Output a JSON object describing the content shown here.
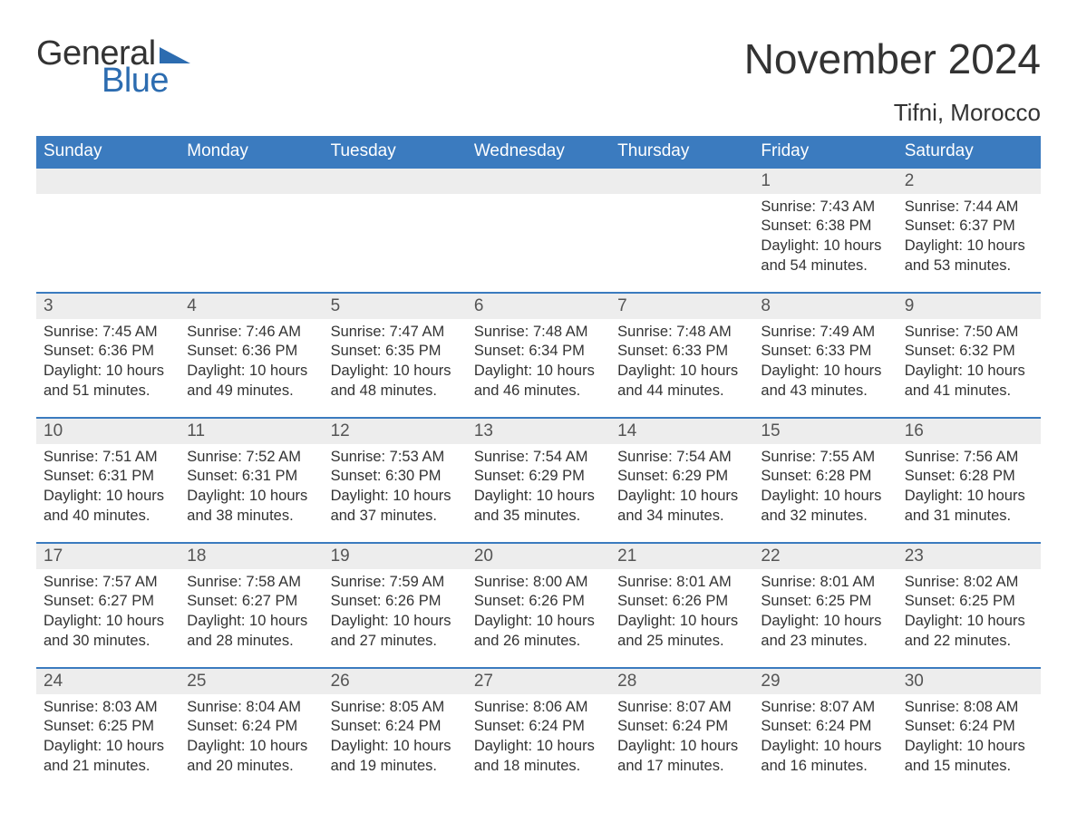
{
  "branding": {
    "logo_text_1": "General",
    "logo_text_2": "Blue",
    "logo_color_dark": "#333333",
    "logo_color_blue": "#2c6cb0",
    "triangle_color": "#2c6cb0"
  },
  "header": {
    "month_title": "November 2024",
    "location": "Tifni, Morocco"
  },
  "styling": {
    "header_bg": "#3b7bbf",
    "header_text_color": "#ffffff",
    "daynum_bg": "#ededed",
    "daynum_text_color": "#555555",
    "body_text_color": "#333333",
    "week_border_color": "#3b7bbf",
    "page_bg": "#ffffff",
    "header_fontsize": 19,
    "daynum_fontsize": 19,
    "detail_fontsize": 16.5,
    "month_title_fontsize": 46,
    "location_fontsize": 26,
    "columns": 7
  },
  "day_names": [
    "Sunday",
    "Monday",
    "Tuesday",
    "Wednesday",
    "Thursday",
    "Friday",
    "Saturday"
  ],
  "labels": {
    "sunrise": "Sunrise",
    "sunset": "Sunset",
    "daylight": "Daylight"
  },
  "weeks": [
    {
      "days": [
        null,
        null,
        null,
        null,
        null,
        {
          "num": "1",
          "sunrise": "7:43 AM",
          "sunset": "6:38 PM",
          "daylight": "10 hours and 54 minutes."
        },
        {
          "num": "2",
          "sunrise": "7:44 AM",
          "sunset": "6:37 PM",
          "daylight": "10 hours and 53 minutes."
        }
      ]
    },
    {
      "days": [
        {
          "num": "3",
          "sunrise": "7:45 AM",
          "sunset": "6:36 PM",
          "daylight": "10 hours and 51 minutes."
        },
        {
          "num": "4",
          "sunrise": "7:46 AM",
          "sunset": "6:36 PM",
          "daylight": "10 hours and 49 minutes."
        },
        {
          "num": "5",
          "sunrise": "7:47 AM",
          "sunset": "6:35 PM",
          "daylight": "10 hours and 48 minutes."
        },
        {
          "num": "6",
          "sunrise": "7:48 AM",
          "sunset": "6:34 PM",
          "daylight": "10 hours and 46 minutes."
        },
        {
          "num": "7",
          "sunrise": "7:48 AM",
          "sunset": "6:33 PM",
          "daylight": "10 hours and 44 minutes."
        },
        {
          "num": "8",
          "sunrise": "7:49 AM",
          "sunset": "6:33 PM",
          "daylight": "10 hours and 43 minutes."
        },
        {
          "num": "9",
          "sunrise": "7:50 AM",
          "sunset": "6:32 PM",
          "daylight": "10 hours and 41 minutes."
        }
      ]
    },
    {
      "days": [
        {
          "num": "10",
          "sunrise": "7:51 AM",
          "sunset": "6:31 PM",
          "daylight": "10 hours and 40 minutes."
        },
        {
          "num": "11",
          "sunrise": "7:52 AM",
          "sunset": "6:31 PM",
          "daylight": "10 hours and 38 minutes."
        },
        {
          "num": "12",
          "sunrise": "7:53 AM",
          "sunset": "6:30 PM",
          "daylight": "10 hours and 37 minutes."
        },
        {
          "num": "13",
          "sunrise": "7:54 AM",
          "sunset": "6:29 PM",
          "daylight": "10 hours and 35 minutes."
        },
        {
          "num": "14",
          "sunrise": "7:54 AM",
          "sunset": "6:29 PM",
          "daylight": "10 hours and 34 minutes."
        },
        {
          "num": "15",
          "sunrise": "7:55 AM",
          "sunset": "6:28 PM",
          "daylight": "10 hours and 32 minutes."
        },
        {
          "num": "16",
          "sunrise": "7:56 AM",
          "sunset": "6:28 PM",
          "daylight": "10 hours and 31 minutes."
        }
      ]
    },
    {
      "days": [
        {
          "num": "17",
          "sunrise": "7:57 AM",
          "sunset": "6:27 PM",
          "daylight": "10 hours and 30 minutes."
        },
        {
          "num": "18",
          "sunrise": "7:58 AM",
          "sunset": "6:27 PM",
          "daylight": "10 hours and 28 minutes."
        },
        {
          "num": "19",
          "sunrise": "7:59 AM",
          "sunset": "6:26 PM",
          "daylight": "10 hours and 27 minutes."
        },
        {
          "num": "20",
          "sunrise": "8:00 AM",
          "sunset": "6:26 PM",
          "daylight": "10 hours and 26 minutes."
        },
        {
          "num": "21",
          "sunrise": "8:01 AM",
          "sunset": "6:26 PM",
          "daylight": "10 hours and 25 minutes."
        },
        {
          "num": "22",
          "sunrise": "8:01 AM",
          "sunset": "6:25 PM",
          "daylight": "10 hours and 23 minutes."
        },
        {
          "num": "23",
          "sunrise": "8:02 AM",
          "sunset": "6:25 PM",
          "daylight": "10 hours and 22 minutes."
        }
      ]
    },
    {
      "days": [
        {
          "num": "24",
          "sunrise": "8:03 AM",
          "sunset": "6:25 PM",
          "daylight": "10 hours and 21 minutes."
        },
        {
          "num": "25",
          "sunrise": "8:04 AM",
          "sunset": "6:24 PM",
          "daylight": "10 hours and 20 minutes."
        },
        {
          "num": "26",
          "sunrise": "8:05 AM",
          "sunset": "6:24 PM",
          "daylight": "10 hours and 19 minutes."
        },
        {
          "num": "27",
          "sunrise": "8:06 AM",
          "sunset": "6:24 PM",
          "daylight": "10 hours and 18 minutes."
        },
        {
          "num": "28",
          "sunrise": "8:07 AM",
          "sunset": "6:24 PM",
          "daylight": "10 hours and 17 minutes."
        },
        {
          "num": "29",
          "sunrise": "8:07 AM",
          "sunset": "6:24 PM",
          "daylight": "10 hours and 16 minutes."
        },
        {
          "num": "30",
          "sunrise": "8:08 AM",
          "sunset": "6:24 PM",
          "daylight": "10 hours and 15 minutes."
        }
      ]
    }
  ]
}
